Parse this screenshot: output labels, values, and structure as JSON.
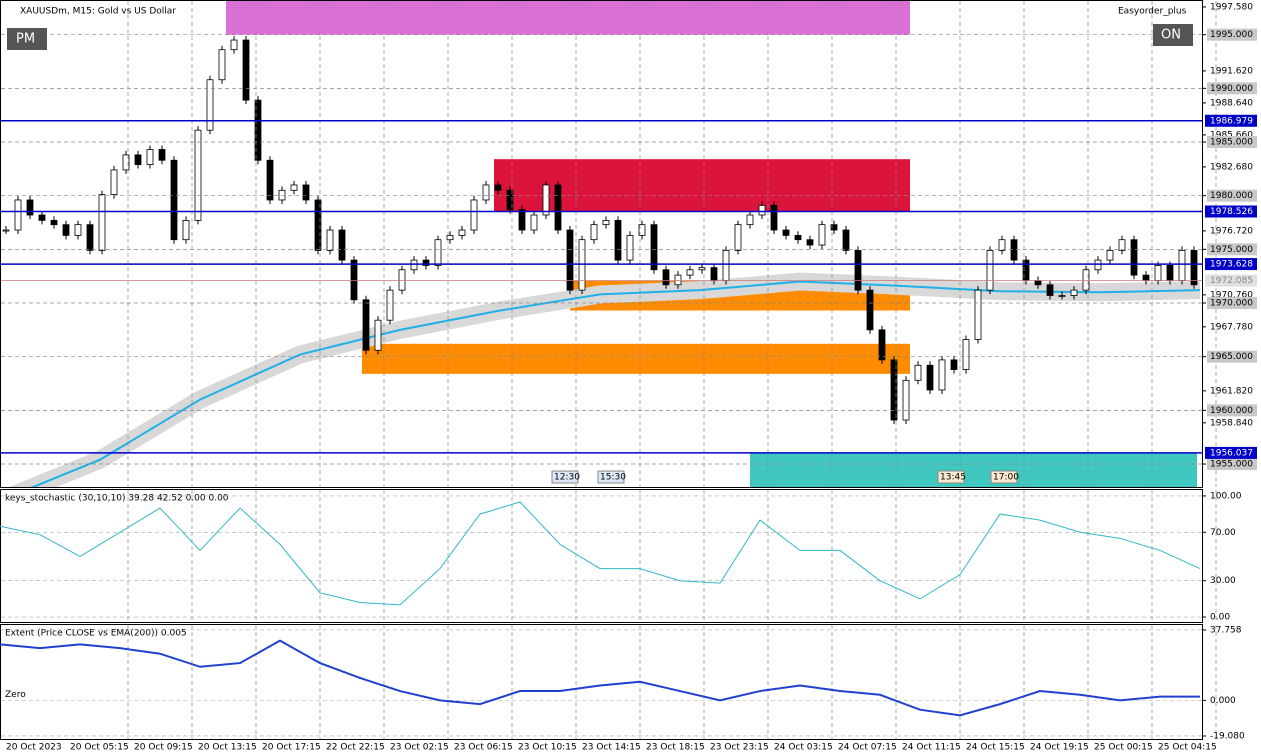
{
  "header": {
    "symbol": "XAUUSDm, M15:  Gold vs US Dollar",
    "expert": "Easyorder_plus",
    "button_left": "PM",
    "button_right": "ON"
  },
  "main": {
    "ylim": [
      1952.86,
      1998.23
    ],
    "yticks": [
      {
        "value": 1997.58,
        "label": "1997.580"
      },
      {
        "value": 1995,
        "label": "1995.000"
      },
      {
        "value": 1991.62,
        "label": "1991.620"
      },
      {
        "value": 1990,
        "label": "1990.000"
      },
      {
        "value": 1988.64,
        "label": "1988.640"
      },
      {
        "value": 1985.66,
        "label": "1985.660"
      },
      {
        "value": 1985,
        "label": "1985.000"
      },
      {
        "value": 1982.68,
        "label": "1982.680"
      },
      {
        "value": 1980,
        "label": "1980.000"
      },
      {
        "value": 1976.72,
        "label": "1976.720"
      },
      {
        "value": 1975,
        "label": "1975.000"
      },
      {
        "value": 1970.76,
        "label": "1970.760"
      },
      {
        "value": 1970,
        "label": "1970.000"
      },
      {
        "value": 1967.78,
        "label": "1967.780"
      },
      {
        "value": 1965,
        "label": "1965.000"
      },
      {
        "value": 1961.82,
        "label": "1961.820"
      },
      {
        "value": 1960,
        "label": "1960.000"
      },
      {
        "value": 1958.84,
        "label": "1958.840"
      },
      {
        "value": 1955,
        "label": "1955.000"
      }
    ],
    "levels": [
      {
        "value": 1986.979,
        "label": "1986.979"
      },
      {
        "value": 1978.526,
        "label": "1978.526"
      },
      {
        "value": 1973.628,
        "label": "1973.628"
      },
      {
        "value": 1956.037,
        "label": "1956.037"
      }
    ],
    "last_price": {
      "value": 1972.085,
      "label": "1972.085"
    },
    "zones": [
      {
        "low": 1995,
        "high": 1998.23,
        "color": "#da70d6"
      },
      {
        "low": 1978.5,
        "high": 1983.4,
        "color": "#dc143c"
      },
      {
        "low": 1969.3,
        "high": 1972.1,
        "color": "#ff8c00"
      },
      {
        "low": 1963.4,
        "high": 1966.2,
        "color": "#ff8c00"
      },
      {
        "low": 1952.86,
        "high": 1956,
        "color": "#40c8c0"
      }
    ],
    "closes": [
      1976.8,
      1979.6,
      1978.2,
      1977.7,
      1977.3,
      1976.3,
      1977.3,
      1974.9,
      1980.1,
      1982.4,
      1983.8,
      1982.9,
      1984.3,
      1983.3,
      1975.9,
      1977.7,
      1986.1,
      1990.8,
      1993.6,
      1994.5,
      1988.9,
      1983.3,
      1979.6,
      1980.5,
      1981.0,
      1979.6,
      1974.9,
      1976.8,
      1974.0,
      1970.3,
      1965.6,
      1968.4,
      1971.2,
      1973.1,
      1974.0,
      1973.5,
      1975.9,
      1976.3,
      1976.8,
      1979.6,
      1981.0,
      1980.5,
      1978.7,
      1976.8,
      1978.2,
      1981.0,
      1976.8,
      1971.2,
      1975.9,
      1977.3,
      1977.7,
      1974.0,
      1976.3,
      1977.3,
      1973.1,
      1971.7,
      1972.6,
      1973.1,
      1973.3,
      1972.1,
      1974.9,
      1977.3,
      1978.2,
      1979.1,
      1976.8,
      1976.3,
      1975.9,
      1975.4,
      1977.3,
      1976.8,
      1974.9,
      1971.2,
      1967.5,
      1964.7,
      1959.1,
      1962.8,
      1964.2,
      1961.9,
      1964.7,
      1963.8,
      1966.6,
      1971.2,
      1974.9,
      1975.9,
      1974.0,
      1972.1,
      1971.7,
      1970.7,
      1970.7,
      1971.2,
      1973.1,
      1974.0,
      1974.9,
      1975.9,
      1972.6,
      1972.1,
      1973.5,
      1972.1,
      1974.9,
      1971.7
    ],
    "ema": [
      1951.6,
      1955.4,
      1961.0,
      1965.2,
      1967.5,
      1969.3,
      1970.8,
      1971.2,
      1972.0,
      1971.6,
      1971.1,
      1971.0,
      1971.2
    ],
    "time_marks": [
      "12:30",
      "15:30",
      "13:45",
      "17:00"
    ]
  },
  "stochastic": {
    "title": "keys_stochastic (30,10,10) 39.28 42.52 0.00 0.00",
    "ylim": [
      -4.1,
      104.9
    ],
    "yticks": [
      {
        "value": 100,
        "label": "100.00"
      },
      {
        "value": 70,
        "label": "70.00"
      },
      {
        "value": 30,
        "label": "30.00"
      },
      {
        "value": 0,
        "label": "0.00"
      }
    ],
    "values": [
      75,
      68,
      50,
      70,
      90,
      55,
      90,
      60,
      20,
      12,
      10,
      40,
      85,
      95,
      60,
      40,
      40,
      30,
      28,
      80,
      55,
      55,
      30,
      15,
      35,
      85,
      80,
      70,
      65,
      55,
      40
    ]
  },
  "extent": {
    "title": "Extent (Price CLOSE vs EMA(200)) 0.005",
    "zero_label": "Zero",
    "ylim": [
      -20.7,
      40.4
    ],
    "yticks": [
      {
        "value": 37.758,
        "label": "37.758"
      },
      {
        "value": 0,
        "label": "0.000"
      },
      {
        "value": -19.08,
        "label": "-19.080"
      }
    ],
    "values": [
      30,
      28,
      30,
      28,
      25,
      18,
      20,
      32,
      20,
      12,
      5,
      0,
      -2,
      5,
      5,
      8,
      10,
      5,
      0,
      5,
      8,
      5,
      3,
      -5,
      -8,
      -2,
      5,
      3,
      0,
      2,
      2
    ]
  },
  "x_labels": [
    "20 Oct 2023",
    "20 Oct 05:15",
    "20 Oct 09:15",
    "20 Oct 13:15",
    "20 Oct 17:15",
    "22 Oct 22:15",
    "23 Oct 02:15",
    "23 Oct 06:15",
    "23 Oct 10:15",
    "23 Oct 14:15",
    "23 Oct 18:15",
    "23 Oct 23:15",
    "24 Oct 03:15",
    "24 Oct 07:15",
    "24 Oct 11:15",
    "24 Oct 15:15",
    "24 Oct 19:15",
    "25 Oct 00:15",
    "25 Oct 04:15"
  ]
}
